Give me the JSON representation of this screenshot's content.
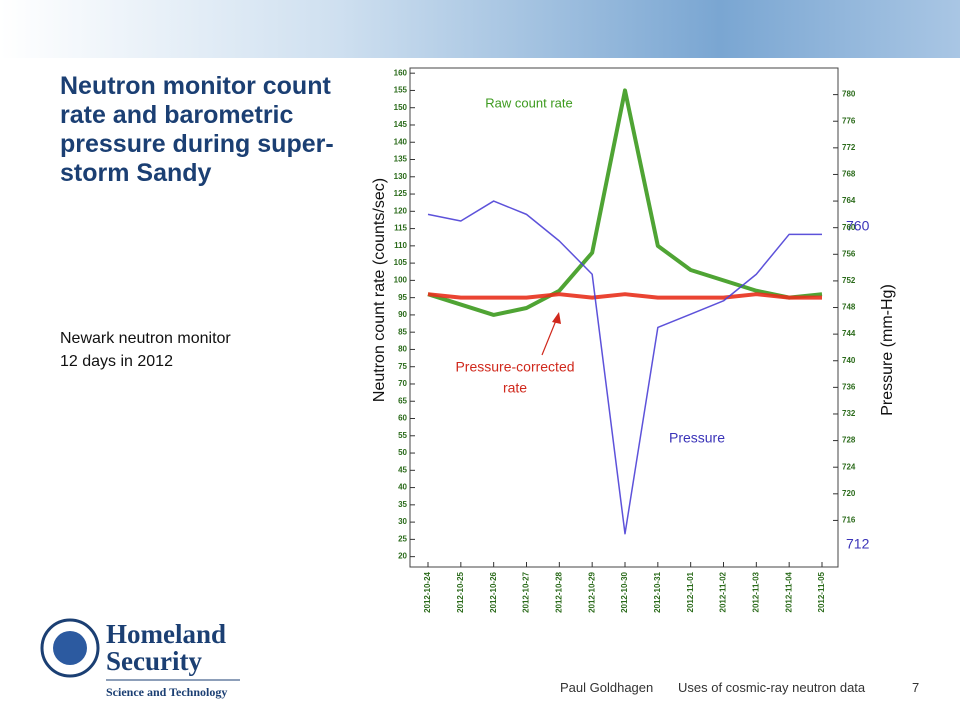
{
  "slide": {
    "title": "Neutron monitor count rate and barometric pressure during super-storm Sandy",
    "subtitle_lines": [
      "Newark neutron monitor",
      "12 days in 2012"
    ],
    "footer": {
      "author": "Paul Goldhagen",
      "topic": "Uses of cosmic-ray neutron data",
      "page": "7"
    },
    "logo": {
      "line1": "Homeland",
      "line2": "Security",
      "line3": "Science and Technology"
    }
  },
  "chart_data": {
    "type": "line",
    "y_label": "Neutron count rate  (counts/sec)",
    "y2_label": "Pressure  (mm-Hg)",
    "annotations": {
      "raw": "Raw count rate",
      "corrected_1": "Pressure-corrected",
      "corrected_2": "rate",
      "pressure": "Pressure",
      "p_high": "760",
      "p_low": "712"
    },
    "x": [
      "2012-10-24",
      "2012-10-25",
      "2012-10-26",
      "2012-10-27",
      "2012-10-28",
      "2012-10-29",
      "2012-10-30",
      "2012-10-31",
      "2012-11-01",
      "2012-11-02",
      "2012-11-03",
      "2012-11-04",
      "2012-11-05"
    ],
    "series": [
      {
        "name": "Raw count rate",
        "color": "#3c9a1e",
        "values": [
          96,
          93,
          90,
          92,
          97,
          108,
          155,
          110,
          103,
          100,
          97,
          95,
          96
        ]
      },
      {
        "name": "Pressure-corrected rate",
        "color": "#e8301c",
        "values": [
          96,
          95,
          95,
          95,
          96,
          95,
          96,
          95,
          95,
          95,
          96,
          95,
          95
        ]
      },
      {
        "name": "Pressure",
        "color": "#4b3fd6",
        "axis": "y2",
        "values": [
          762,
          761,
          764,
          762,
          758,
          753,
          714,
          745,
          747,
          749,
          753,
          759,
          759
        ]
      }
    ],
    "ylim": [
      17,
      161.5
    ],
    "yticks": [
      20,
      25,
      30,
      35,
      40,
      45,
      50,
      55,
      60,
      65,
      70,
      75,
      80,
      85,
      90,
      95,
      100,
      105,
      110,
      115,
      120,
      125,
      130,
      135,
      140,
      145,
      150,
      155,
      160
    ],
    "y2lim": [
      709,
      784
    ],
    "y2ticks": [
      716,
      720,
      724,
      728,
      732,
      736,
      740,
      744,
      748,
      752,
      756,
      760,
      764,
      768,
      772,
      776,
      780
    ],
    "grid": false
  }
}
